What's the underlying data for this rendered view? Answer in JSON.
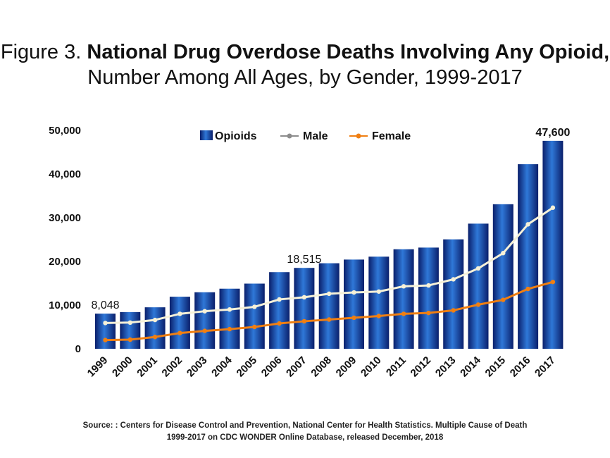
{
  "title": {
    "prefix": "Figure 3.",
    "main": "National Drug Overdose Deaths Involving Any Opioid,",
    "subtitle": "Number Among All Ages, by Gender, 1999-2017"
  },
  "source": {
    "line1": "Source: : Centers for Disease Control and Prevention, National Center for Health Statistics. Multiple Cause of Death",
    "line2": "1999-2017 on CDC WONDER Online Database, released December, 2018"
  },
  "colors": {
    "bar_dark": "#0a1f6b",
    "bar_light": "#2f78d8",
    "male": "#8c8c8c",
    "male_line": "#f6f1d8",
    "female": "#f07f12"
  },
  "chart_data": {
    "type": "bar",
    "categories": [
      "1999",
      "2000",
      "2001",
      "2002",
      "2003",
      "2004",
      "2005",
      "2006",
      "2007",
      "2008",
      "2009",
      "2010",
      "2011",
      "2012",
      "2013",
      "2014",
      "2015",
      "2016",
      "2017"
    ],
    "series": [
      {
        "name": "Opioids",
        "type": "bar",
        "values": [
          8048,
          8407,
          9496,
          11920,
          12940,
          13756,
          14918,
          17545,
          18515,
          19582,
          20422,
          21089,
          22784,
          23166,
          25052,
          28647,
          33091,
          42249,
          47600
        ]
      },
      {
        "name": "Male",
        "type": "line",
        "values": [
          5900,
          6000,
          6600,
          8000,
          8600,
          9000,
          9600,
          11300,
          11800,
          12600,
          12900,
          13100,
          14300,
          14500,
          15900,
          18400,
          21900,
          28500,
          32300
        ]
      },
      {
        "name": "Female",
        "type": "line",
        "values": [
          2000,
          2100,
          2700,
          3600,
          4100,
          4500,
          5000,
          5800,
          6300,
          6700,
          7100,
          7500,
          8000,
          8200,
          8800,
          10100,
          11200,
          13700,
          15300
        ]
      }
    ],
    "data_labels": [
      {
        "category": "1999",
        "text": "8,048"
      },
      {
        "category": "2007",
        "text": "18,515"
      },
      {
        "category": "2017",
        "text": "47,600"
      }
    ],
    "y_ticks": [
      "0",
      "10,000",
      "20,000",
      "30,000",
      "40,000",
      "50,000"
    ],
    "ylim": [
      0,
      50000
    ],
    "legend": {
      "position": "top",
      "entries": [
        "Opioids",
        "Male",
        "Female"
      ]
    },
    "grid": false,
    "xlabel": "",
    "ylabel": ""
  }
}
